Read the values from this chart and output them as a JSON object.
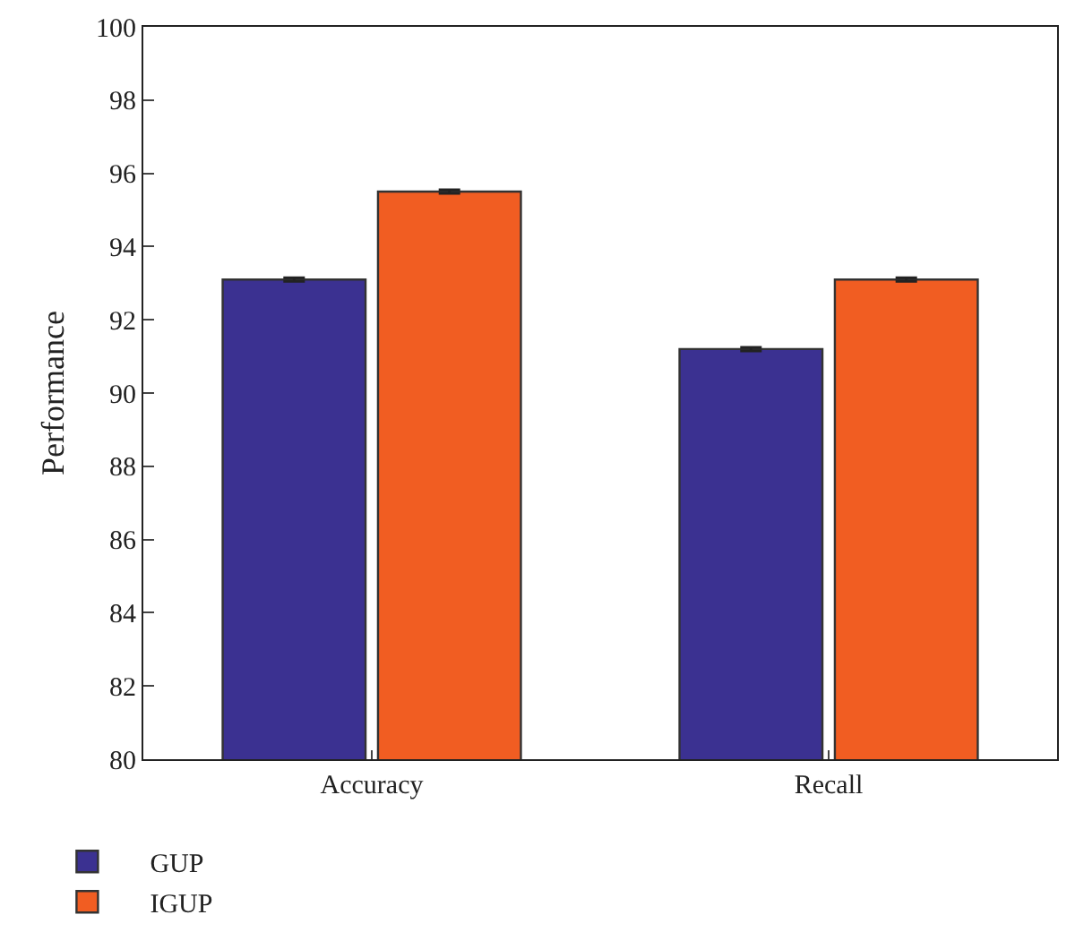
{
  "chart_data": {
    "type": "bar",
    "ylabel": "Performance",
    "categories": [
      "Accuracy",
      "Recall"
    ],
    "series": [
      {
        "name": "GUP",
        "color": "#3b3191",
        "values": [
          93.1,
          91.2
        ],
        "errors": [
          0.05,
          0.05
        ]
      },
      {
        "name": "IGUP",
        "color": "#f15d22",
        "values": [
          95.5,
          93.1
        ],
        "errors": [
          0.05,
          0.05
        ]
      }
    ],
    "ylim": [
      80,
      100
    ],
    "yticks": [
      80,
      82,
      84,
      86,
      88,
      90,
      92,
      94,
      96,
      98,
      100
    ],
    "grid": false,
    "legend": "bottom left"
  }
}
